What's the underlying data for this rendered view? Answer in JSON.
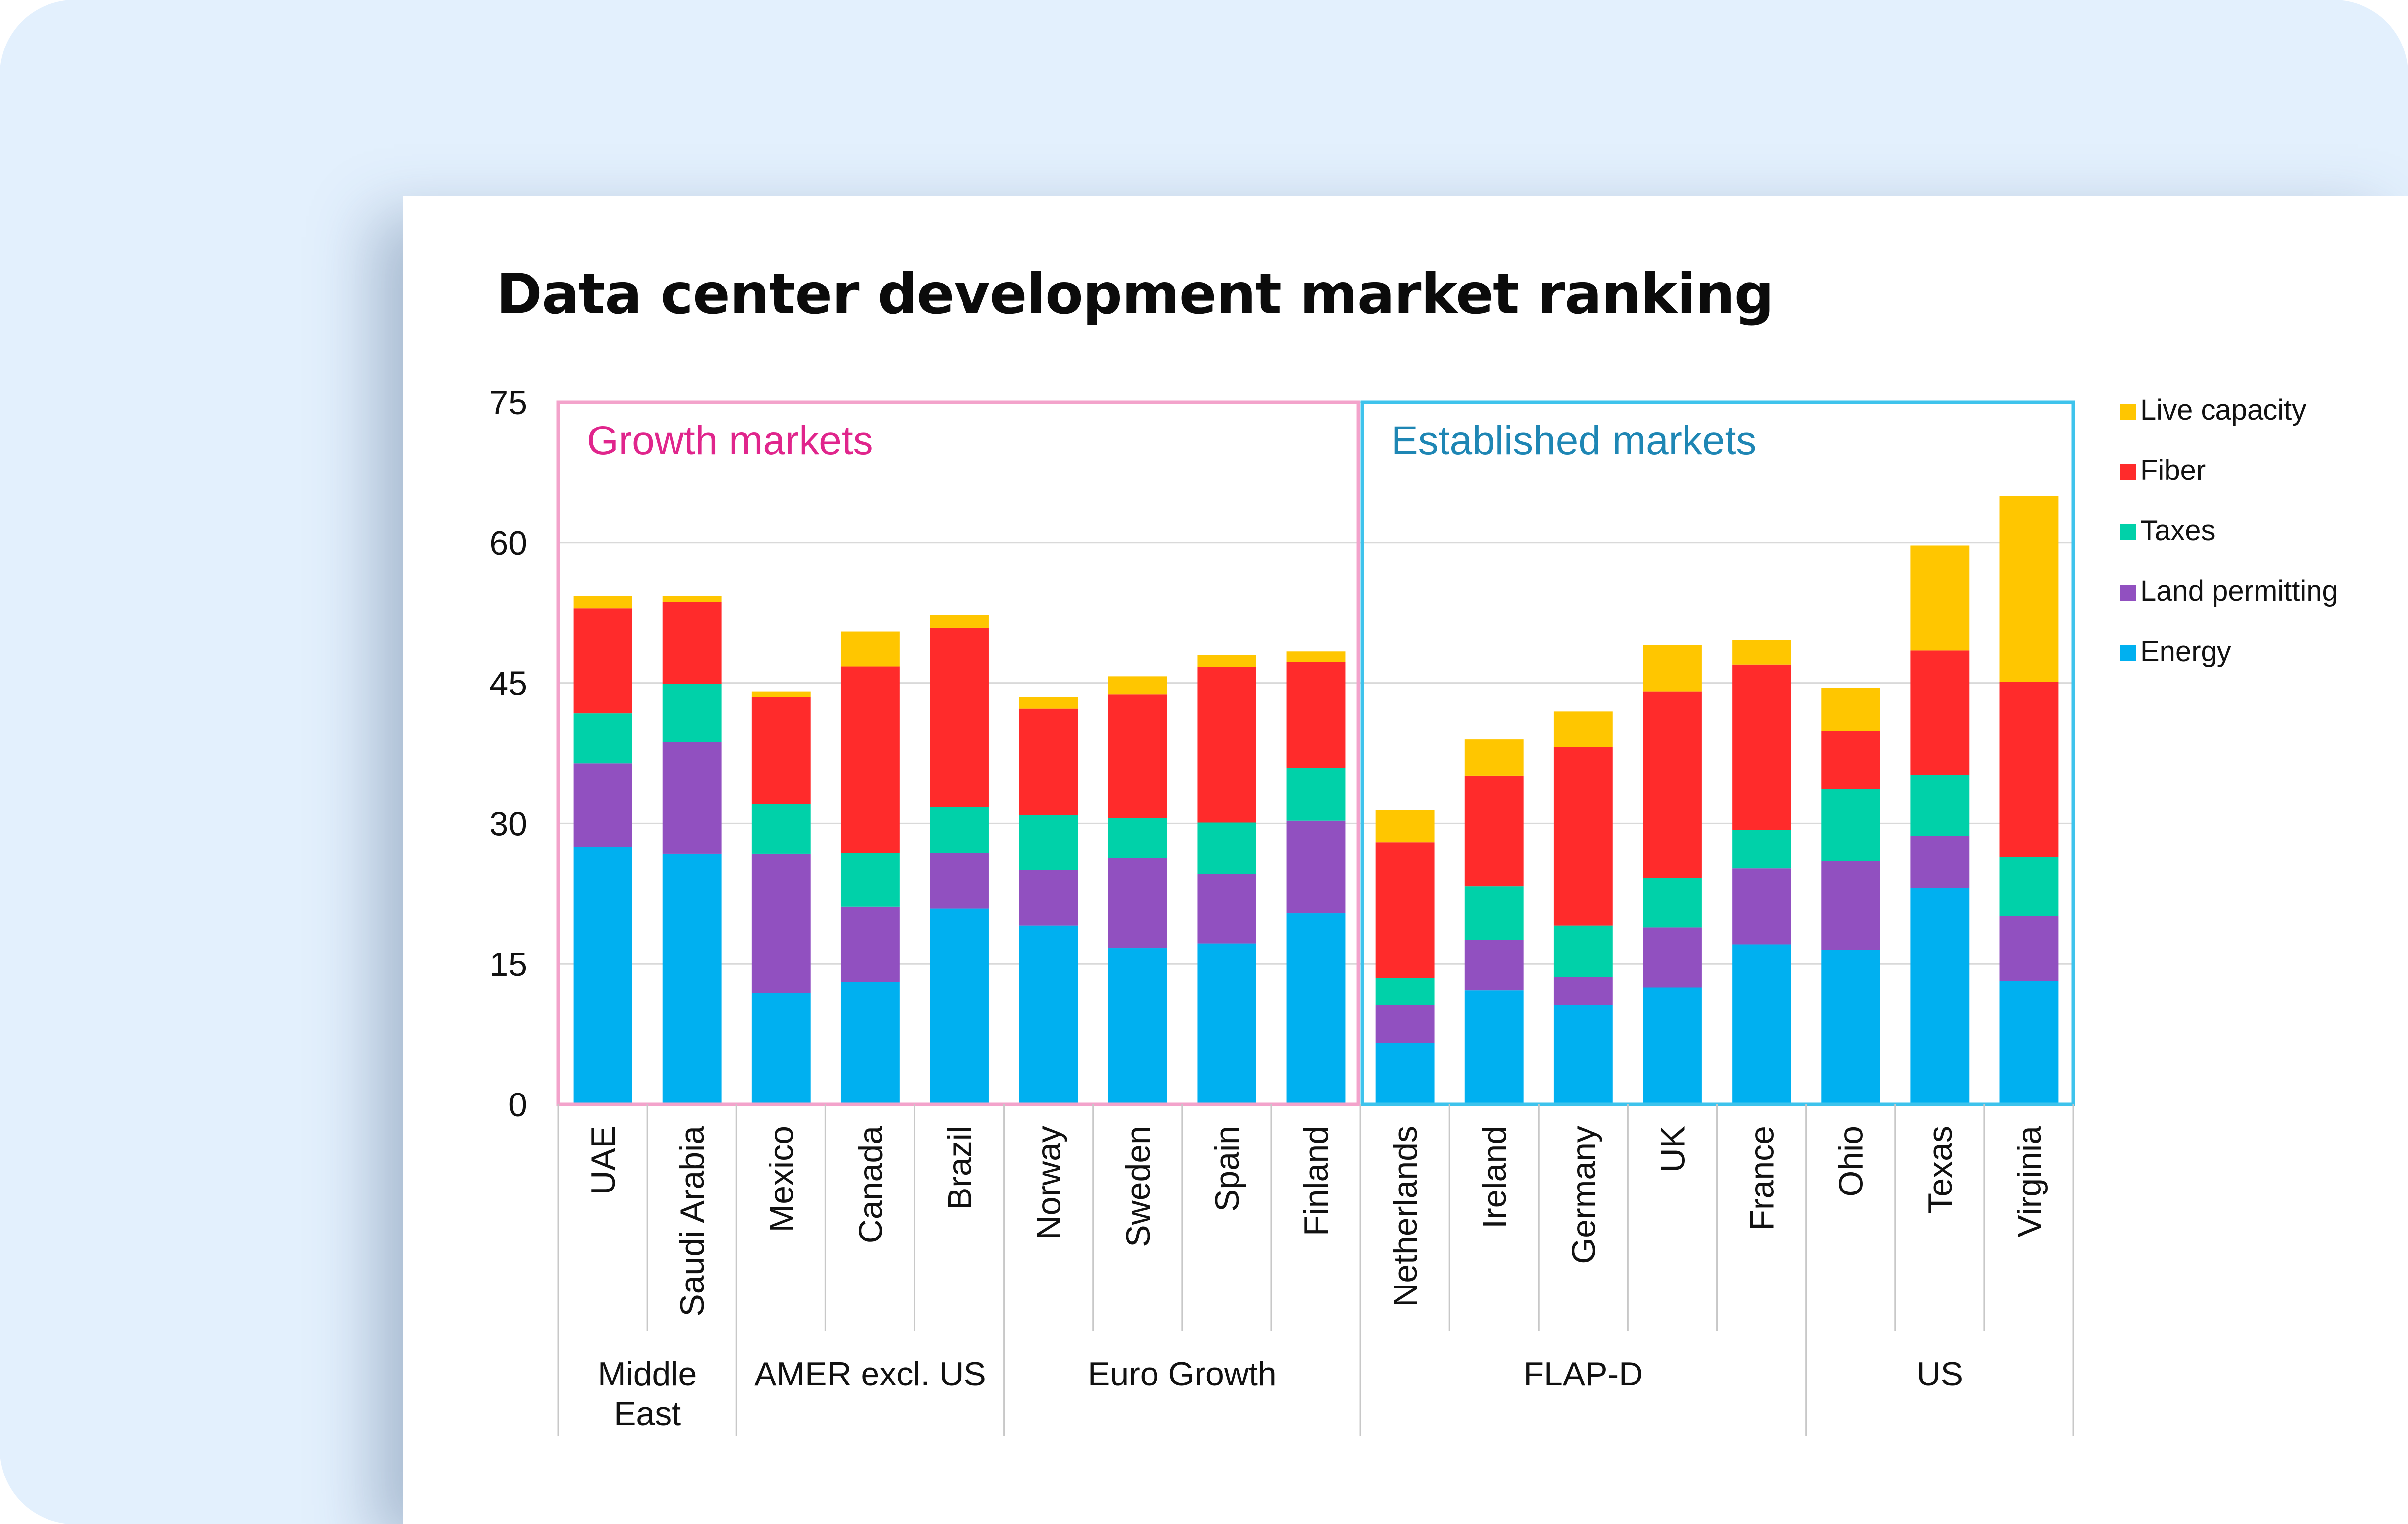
{
  "chart_data": {
    "type": "bar",
    "stacked": true,
    "title": "Data center development market ranking",
    "xlabel": "",
    "ylabel": "",
    "ylim": [
      0,
      75
    ],
    "yticks": [
      0,
      15,
      30,
      45,
      60,
      75
    ],
    "grid": true,
    "legend_position": "right",
    "categories": [
      "UAE",
      "Saudi Arabia",
      "Mexico",
      "Canada",
      "Brazil",
      "Norway",
      "Sweden",
      "Spain",
      "Finland",
      "Netherlands",
      "Ireland",
      "Germany",
      "UK",
      "France",
      "Ohio",
      "Texas",
      "Virginia"
    ],
    "groups": [
      {
        "label": "Middle East",
        "categories": [
          "UAE",
          "Saudi Arabia"
        ]
      },
      {
        "label": "AMER excl. US",
        "categories": [
          "Mexico",
          "Canada",
          "Brazil"
        ]
      },
      {
        "label": "Euro Growth",
        "categories": [
          "Norway",
          "Sweden",
          "Spain",
          "Finland"
        ]
      },
      {
        "label": "FLAP-D",
        "categories": [
          "Netherlands",
          "Ireland",
          "Germany",
          "UK",
          "France"
        ]
      },
      {
        "label": "US",
        "categories": [
          "Ohio",
          "Texas",
          "Virginia"
        ]
      }
    ],
    "annotations": [
      {
        "label": "Growth markets",
        "categories": [
          "UAE",
          "Finland"
        ],
        "color": "#e0258c",
        "border": "#f3a3cb"
      },
      {
        "label": "Established markets",
        "categories": [
          "Netherlands",
          "Virginia"
        ],
        "color": "#1e86b4",
        "border": "#3ec3ec"
      }
    ],
    "series": [
      {
        "name": "Energy",
        "color": "#00b0f0",
        "values": [
          27.5,
          26.8,
          11.9,
          13.1,
          20.9,
          19.1,
          16.7,
          17.2,
          20.4,
          6.6,
          12.2,
          10.6,
          12.5,
          17.1,
          16.5,
          23.1,
          13.2
        ]
      },
      {
        "name": "Land permitting",
        "color": "#9150c0",
        "values": [
          8.9,
          11.9,
          14.9,
          8.0,
          6.0,
          5.9,
          9.6,
          7.4,
          9.9,
          4.0,
          5.4,
          3.0,
          6.4,
          8.1,
          9.5,
          5.6,
          6.9
        ]
      },
      {
        "name": "Taxes",
        "color": "#00d1a9",
        "values": [
          5.4,
          6.2,
          5.3,
          5.8,
          4.9,
          5.9,
          4.3,
          5.5,
          5.6,
          2.9,
          5.7,
          5.5,
          5.3,
          4.1,
          7.7,
          6.5,
          6.3
        ]
      },
      {
        "name": "Fiber",
        "color": "#ff2b2b",
        "values": [
          11.2,
          8.8,
          11.4,
          19.9,
          19.1,
          11.4,
          13.2,
          16.6,
          11.4,
          14.5,
          11.8,
          19.1,
          19.9,
          17.7,
          6.2,
          13.3,
          18.7
        ]
      },
      {
        "name": "Live capacity",
        "color": "#ffc600",
        "values": [
          1.3,
          0.6,
          0.6,
          3.7,
          1.4,
          1.2,
          1.9,
          1.3,
          1.1,
          3.5,
          3.9,
          3.8,
          5.0,
          2.6,
          4.6,
          11.2,
          19.9
        ]
      }
    ]
  }
}
